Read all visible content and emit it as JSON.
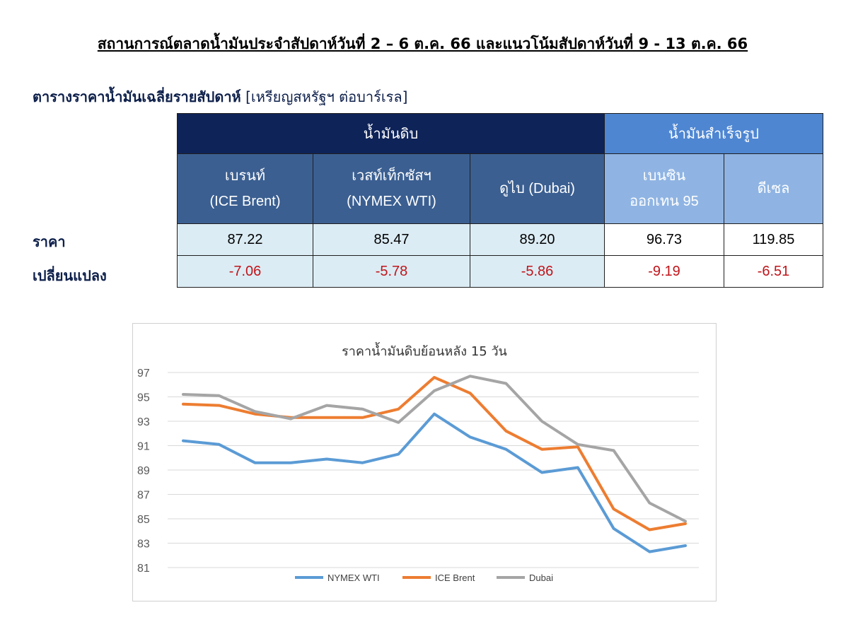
{
  "doc": {
    "title": "สถานการณ์ตลาดน้ำมันประจำสัปดาห์วันที่ 2 – 6 ต.ค. 66 และแนวโน้มสัปดาห์วันที่ 9 - 13 ต.ค. 66",
    "table_title": "ตารางราคาน้ำมันเฉลี่ยรายสัปดาห์",
    "table_unit": "[เหรียญสหรัฐฯ ต่อบาร์เรล]"
  },
  "table": {
    "group_crude": "น้ำมันดิบ",
    "group_refined": "น้ำมันสำเร็จรูป",
    "columns": [
      {
        "line1": "เบรนท์",
        "line2": "(ICE Brent)"
      },
      {
        "line1": "เวสท์เท็กซัสฯ",
        "line2": "(NYMEX WTI)"
      },
      {
        "line1": "ดูไบ (Dubai)",
        "line2": ""
      },
      {
        "line1": "เบนซิน",
        "line2": "ออกเทน  95"
      },
      {
        "line1": "ดีเซล",
        "line2": ""
      }
    ],
    "row_price_label": "ราคา",
    "row_change_label": "เปลี่ยนแปลง",
    "prices": [
      "87.22",
      "85.47",
      "89.20",
      "96.73",
      "119.85"
    ],
    "changes": [
      "-7.06",
      "-5.78",
      "-5.86",
      "-9.19",
      "-6.51"
    ]
  },
  "chart_data": {
    "type": "line",
    "title": "ราคาน้ำมันดิบย้อนหลัง 15 วัน",
    "xlabel": "",
    "ylabel": "",
    "ylim": [
      81,
      97
    ],
    "yticks": [
      "97",
      "95",
      "93",
      "91",
      "89",
      "87",
      "85",
      "83",
      "81"
    ],
    "grid": true,
    "legend": "bottom",
    "series": [
      {
        "name": "NYMEX WTI",
        "color": "#5b9bd5",
        "values": [
          91.4,
          91.1,
          89.6,
          89.6,
          89.9,
          89.6,
          90.3,
          93.6,
          91.7,
          90.7,
          88.8,
          89.2,
          84.2,
          82.3,
          82.8
        ]
      },
      {
        "name": "ICE Brent",
        "color": "#ed7d31",
        "values": [
          94.4,
          94.3,
          93.6,
          93.3,
          93.3,
          93.3,
          94.0,
          96.6,
          95.3,
          92.2,
          90.7,
          90.9,
          85.8,
          84.1,
          84.6
        ]
      },
      {
        "name": "Dubai",
        "color": "#a5a5a5",
        "values": [
          95.2,
          95.1,
          93.8,
          93.2,
          94.3,
          94.0,
          92.9,
          95.5,
          96.7,
          96.1,
          93.0,
          91.1,
          90.6,
          86.3,
          84.8
        ]
      }
    ]
  }
}
